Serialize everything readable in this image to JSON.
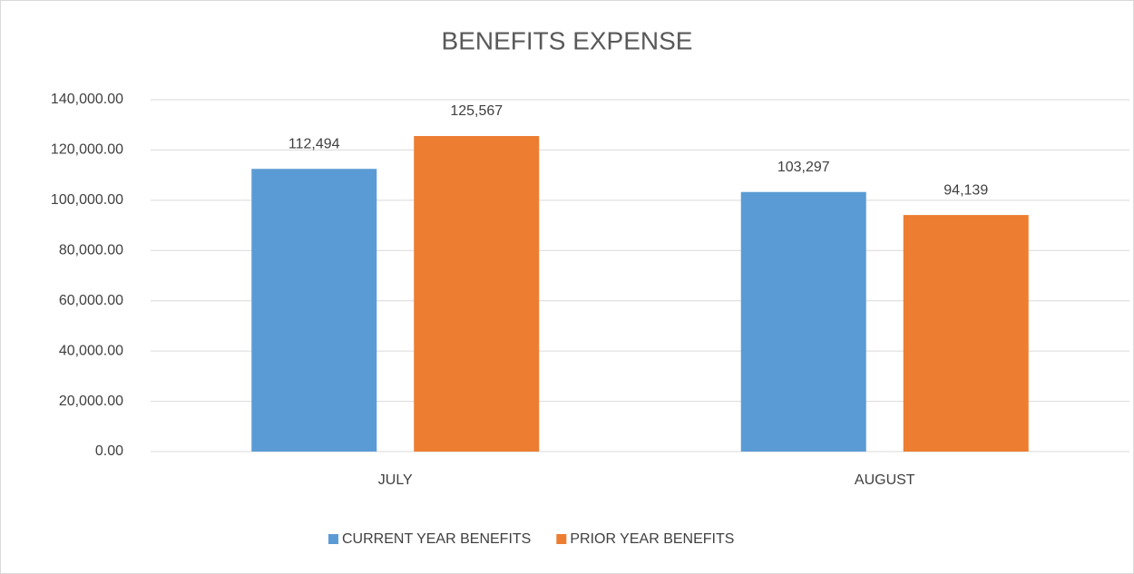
{
  "chart_data": {
    "type": "bar",
    "title": "BENEFITS EXPENSE",
    "categories": [
      "JULY",
      "AUGUST"
    ],
    "series": [
      {
        "name": "CURRENT YEAR BENEFITS",
        "color": "#5b9bd5",
        "values": [
          112494,
          103297
        ],
        "value_labels": [
          "112,494",
          "103,297"
        ]
      },
      {
        "name": "PRIOR YEAR BENEFITS",
        "color": "#ed7d31",
        "values": [
          125567,
          94139
        ],
        "value_labels": [
          "125,567",
          "94,139"
        ]
      }
    ],
    "ylim": [
      0,
      140000
    ],
    "yticks": [
      {
        "value": 0,
        "label": "0.00"
      },
      {
        "value": 20000,
        "label": "20,000.00"
      },
      {
        "value": 40000,
        "label": "40,000.00"
      },
      {
        "value": 60000,
        "label": "60,000.00"
      },
      {
        "value": 80000,
        "label": "80,000.00"
      },
      {
        "value": 100000,
        "label": "100,000.00"
      },
      {
        "value": 120000,
        "label": "120,000.00"
      },
      {
        "value": 140000,
        "label": "140,000.00"
      }
    ],
    "grid": true,
    "legend": "bottom"
  }
}
